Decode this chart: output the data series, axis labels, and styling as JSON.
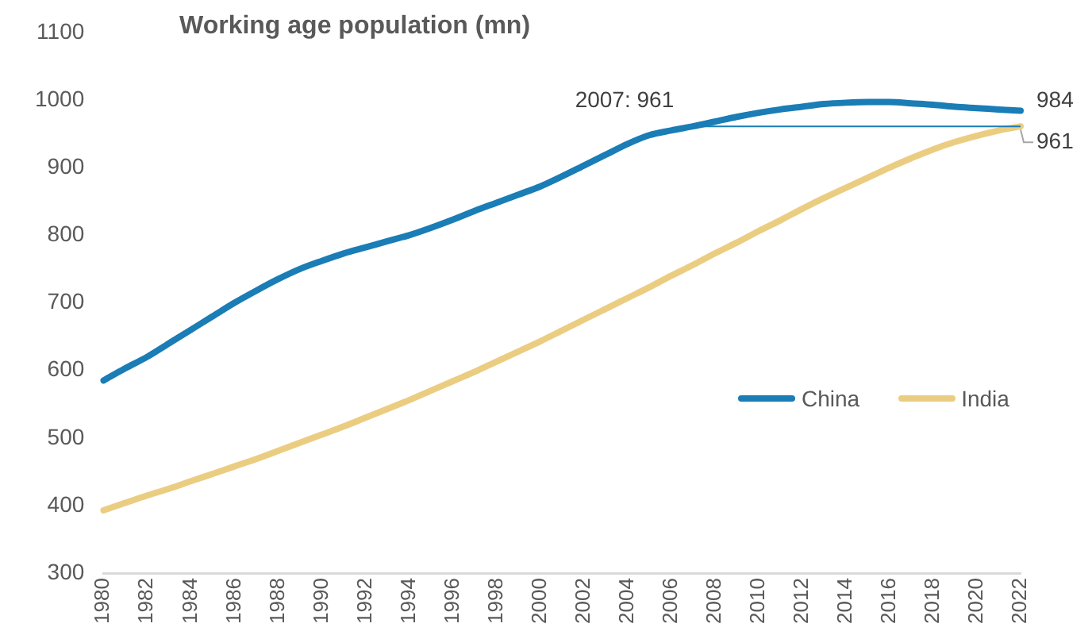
{
  "chart_data": {
    "type": "line",
    "title": "Working age population (mn)",
    "categories": [
      "1980",
      null,
      "1982",
      null,
      "1984",
      null,
      "1986",
      null,
      "1988",
      null,
      "1990",
      null,
      "1992",
      null,
      "1994",
      null,
      "1996",
      null,
      "1998",
      null,
      "2000",
      null,
      "2002",
      null,
      "2004",
      null,
      "2006",
      null,
      "2008",
      null,
      "2010",
      null,
      "2012",
      null,
      "2014",
      null,
      "2016",
      null,
      "2018",
      null,
      "2020",
      null,
      "2022"
    ],
    "series": [
      {
        "name": "China",
        "color": "#1a7db5",
        "values": [
          585,
          603,
          620,
          640,
          660,
          680,
          700,
          718,
          735,
          750,
          762,
          773,
          782,
          791,
          800,
          811,
          823,
          836,
          848,
          860,
          872,
          887,
          903,
          919,
          935,
          948,
          955,
          961,
          968,
          975,
          981,
          986,
          990,
          994,
          996,
          997,
          997,
          995,
          993,
          990,
          988,
          986,
          984
        ],
        "value_labels": [
          null,
          null,
          null,
          null,
          null,
          null,
          null,
          null,
          null,
          null,
          null,
          null,
          null,
          null,
          null,
          null,
          null,
          null,
          null,
          null,
          null,
          null,
          null,
          null,
          null,
          null,
          null,
          null,
          null,
          null,
          null,
          null,
          null,
          null,
          null,
          null,
          null,
          null,
          null,
          null,
          null,
          null,
          "984"
        ]
      },
      {
        "name": "India",
        "color": "#ebcd82",
        "values": [
          393,
          404,
          415,
          425,
          436,
          447,
          458,
          469,
          481,
          493,
          505,
          517,
          530,
          543,
          556,
          570,
          584,
          598,
          613,
          628,
          643,
          659,
          675,
          691,
          707,
          723,
          740,
          756,
          773,
          789,
          806,
          822,
          839,
          855,
          870,
          885,
          900,
          914,
          927,
          938,
          947,
          955,
          961
        ],
        "value_labels": [
          null,
          null,
          null,
          null,
          null,
          null,
          null,
          null,
          null,
          null,
          null,
          null,
          null,
          null,
          null,
          null,
          null,
          null,
          null,
          null,
          null,
          null,
          null,
          null,
          null,
          null,
          null,
          null,
          null,
          null,
          null,
          null,
          null,
          null,
          null,
          null,
          null,
          null,
          null,
          null,
          null,
          null,
          "961"
        ]
      }
    ],
    "ref_lines": [
      {
        "axis": "y",
        "value": 961,
        "label": "2007: 961",
        "color": "#1a7db5"
      }
    ],
    "ylim": [
      300,
      1100
    ],
    "yticks": [
      300,
      400,
      500,
      600,
      700,
      800,
      900,
      1000,
      1100
    ],
    "grid": false,
    "legend": "right",
    "marker": "none",
    "line_style": "solid"
  }
}
